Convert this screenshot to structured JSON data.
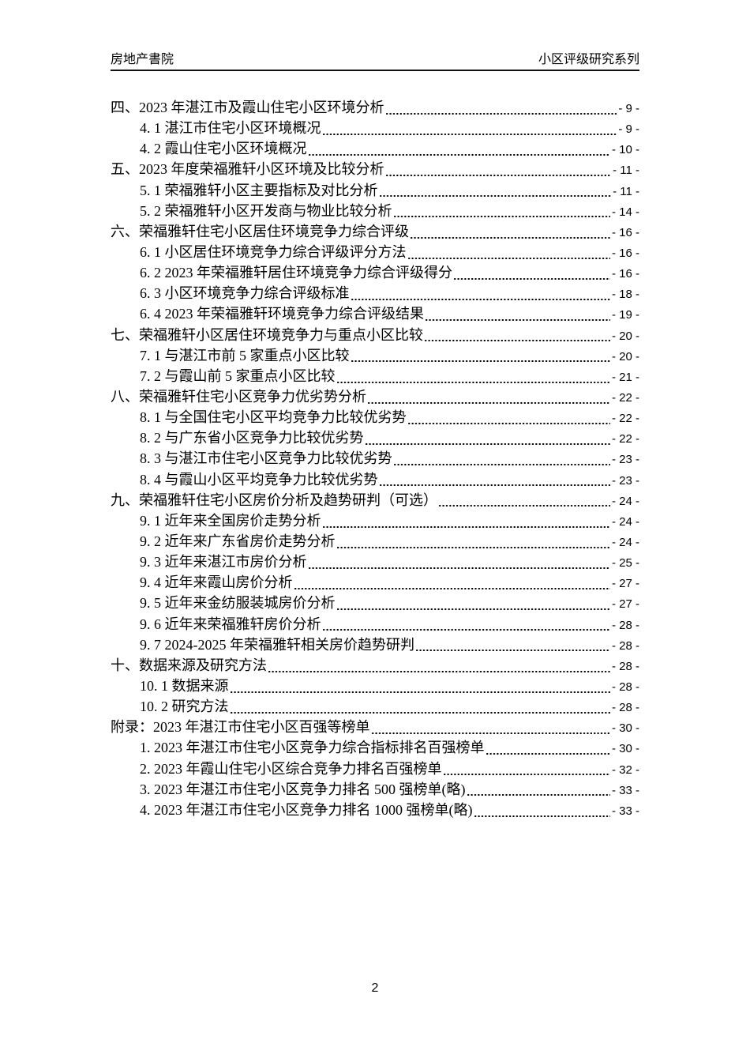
{
  "colors": {
    "background": "#ffffff",
    "text": "#000000",
    "header_rule": "#111111"
  },
  "header": {
    "left": "房地产書院",
    "right": "小区评级研究系列"
  },
  "toc": {
    "items": [
      {
        "level": 0,
        "title": "四、2023 年湛江市及霞山住宅小区环境分析",
        "page": "- 9 -"
      },
      {
        "level": 1,
        "title": "4. 1 湛江市住宅小区环境概况",
        "page": "- 9 -"
      },
      {
        "level": 1,
        "title": "4. 2 霞山住宅小区环境概况",
        "page": "- 10 -"
      },
      {
        "level": 0,
        "title": "五、2023 年度荣福雅轩小区环境及比较分析",
        "page": "- 11 -"
      },
      {
        "level": 1,
        "title": "5. 1 荣福雅轩小区主要指标及对比分析",
        "page": "- 11 -"
      },
      {
        "level": 1,
        "title": "5. 2 荣福雅轩小区开发商与物业比较分析",
        "page": "- 14 -"
      },
      {
        "level": 0,
        "title": "六、荣福雅轩住宅小区居住环境竞争力综合评级",
        "page": "- 16 -"
      },
      {
        "level": 1,
        "title": "6. 1 小区居住环境竞争力综合评级评分方法",
        "page": "- 16 -"
      },
      {
        "level": 1,
        "title": "6. 2 2023 年荣福雅轩居住环境竞争力综合评级得分",
        "page": "- 16 -"
      },
      {
        "level": 1,
        "title": "6. 3 小区环境竞争力综合评级标准",
        "page": "- 18 -"
      },
      {
        "level": 1,
        "title": "6. 4 2023 年荣福雅轩环境竞争力综合评级结果",
        "page": "- 19 -"
      },
      {
        "level": 0,
        "title": "七、荣福雅轩小区居住环境竞争力与重点小区比较",
        "page": "- 20 -"
      },
      {
        "level": 1,
        "title": "7. 1 与湛江市前 5 家重点小区比较",
        "page": "- 20 -"
      },
      {
        "level": 1,
        "title": "7. 2 与霞山前 5 家重点小区比较",
        "page": "- 21 -"
      },
      {
        "level": 0,
        "title": "八、荣福雅轩住宅小区竞争力优劣势分析",
        "page": "- 22 -"
      },
      {
        "level": 1,
        "title": "8. 1 与全国住宅小区平均竞争力比较优劣势",
        "page": "- 22 -"
      },
      {
        "level": 1,
        "title": "8. 2 与广东省小区竞争力比较优劣势",
        "page": "- 22 -"
      },
      {
        "level": 1,
        "title": "8. 3 与湛江市住宅小区竞争力比较优劣势",
        "page": "- 23 -"
      },
      {
        "level": 1,
        "title": "8. 4 与霞山小区平均竞争力比较优劣势",
        "page": "- 23 -"
      },
      {
        "level": 0,
        "title": "九、荣福雅轩住宅小区房价分析及趋势研判（可选）",
        "page": "- 24 -"
      },
      {
        "level": 1,
        "title": "9. 1 近年来全国房价走势分析",
        "page": "- 24 -"
      },
      {
        "level": 1,
        "title": "9. 2 近年来广东省房价走势分析",
        "page": "- 24 -"
      },
      {
        "level": 1,
        "title": "9. 3 近年来湛江市房价分析",
        "page": "- 25 -"
      },
      {
        "level": 1,
        "title": "9. 4 近年来霞山房价分析",
        "page": "- 27 -"
      },
      {
        "level": 1,
        "title": "9. 5 近年来金纺服装城房价分析",
        "page": "- 27 -"
      },
      {
        "level": 1,
        "title": "9. 6 近年来荣福雅轩房价分析",
        "page": "- 28 -"
      },
      {
        "level": 1,
        "title": "9. 7 2024-2025 年荣福雅轩相关房价趋势研判",
        "page": "- 28 -"
      },
      {
        "level": 0,
        "title": "十、数据来源及研究方法",
        "page": "- 28 -"
      },
      {
        "level": 1,
        "title": "10. 1 数据来源",
        "page": "- 28 -"
      },
      {
        "level": 1,
        "title": "10. 2 研究方法",
        "page": "- 28 -"
      },
      {
        "level": 0,
        "title": "附录：2023 年湛江市住宅小区百强等榜单",
        "page": "- 30 -"
      },
      {
        "level": 1,
        "title": "1. 2023 年湛江市住宅小区竞争力综合指标排名百强榜单",
        "page": "- 30 -"
      },
      {
        "level": 1,
        "title": "2. 2023 年霞山住宅小区综合竞争力排名百强榜单",
        "page": "- 32 -"
      },
      {
        "level": 1,
        "title": "3. 2023 年湛江市住宅小区竞争力排名 500 强榜单(略)",
        "page": "- 33 -"
      },
      {
        "level": 1,
        "title": "4. 2023 年湛江市住宅小区竞争力排名 1000 强榜单(略)",
        "page": "- 33 -"
      }
    ]
  },
  "footer": {
    "page_number": "2"
  }
}
